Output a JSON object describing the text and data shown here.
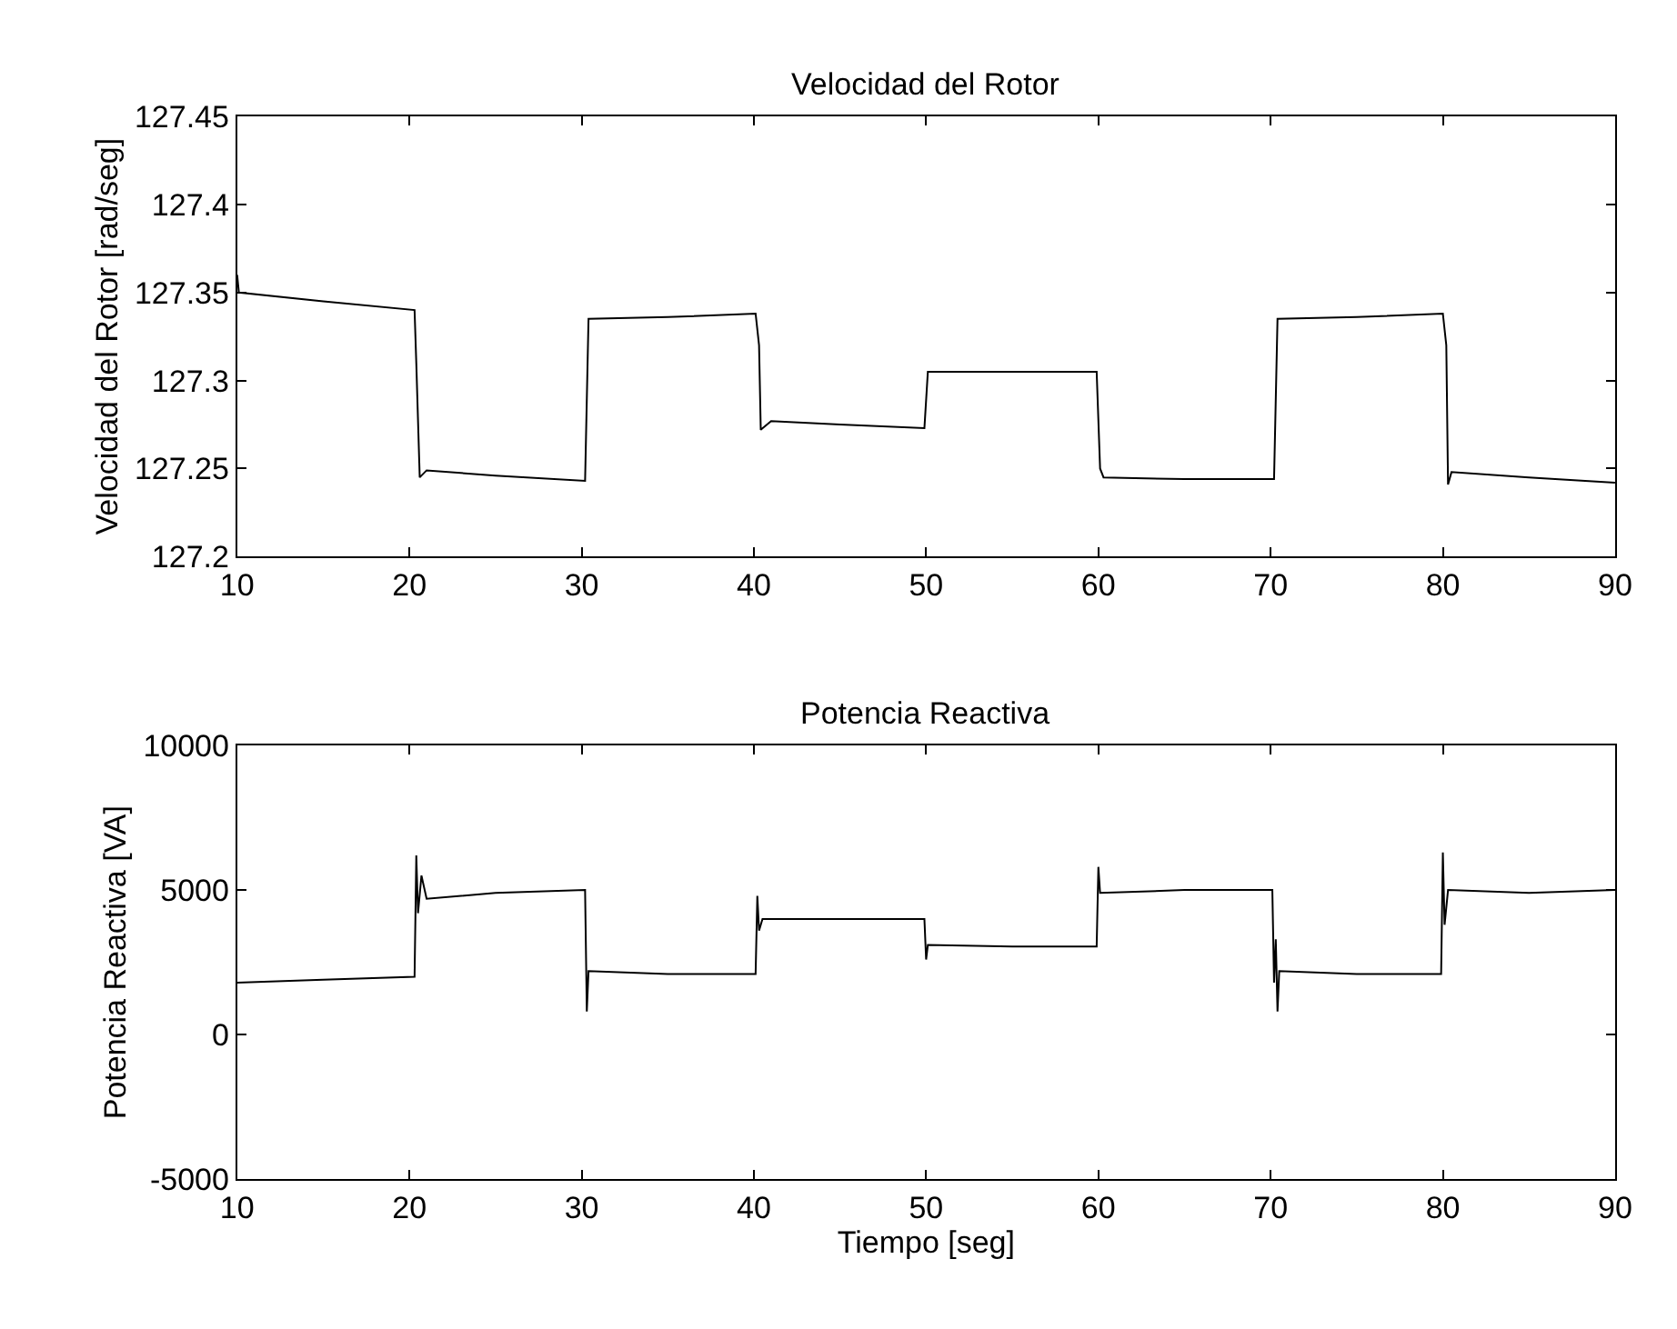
{
  "chart_data": [
    {
      "type": "line",
      "title": "Velocidad del Rotor",
      "ylabel": "Velocidad del Rotor [rad/seg]",
      "xlim": [
        10,
        90
      ],
      "xticks": [
        10,
        20,
        30,
        40,
        50,
        60,
        70,
        80,
        90
      ],
      "ylim": [
        127.2,
        127.45
      ],
      "yticks": [
        127.2,
        127.25,
        127.3,
        127.35,
        127.4,
        127.45
      ],
      "x": [
        10,
        10.1,
        15,
        20.3,
        20.4,
        20.6,
        21,
        25,
        30.2,
        30.4,
        35,
        40.1,
        40.3,
        40.4,
        41,
        45,
        49.9,
        50.1,
        55,
        59.9,
        60.1,
        60.3,
        65,
        70.2,
        70.4,
        75,
        80.0,
        80.2,
        80.3,
        80.5,
        85,
        90
      ],
      "series": [
        {
          "color": "#000000",
          "values": [
            127.36,
            127.35,
            127.345,
            127.34,
            127.31,
            127.245,
            127.249,
            127.246,
            127.243,
            127.335,
            127.336,
            127.338,
            127.32,
            127.272,
            127.277,
            127.275,
            127.273,
            127.305,
            127.305,
            127.305,
            127.25,
            127.245,
            127.244,
            127.244,
            127.335,
            127.336,
            127.338,
            127.32,
            127.241,
            127.248,
            127.245,
            127.242
          ]
        }
      ]
    },
    {
      "type": "line",
      "title": "Potencia Reactiva",
      "xlabel": "Tiempo [seg]",
      "ylabel": "Potencia Reactiva [VA]",
      "xlim": [
        10,
        90
      ],
      "xticks": [
        10,
        20,
        30,
        40,
        50,
        60,
        70,
        80,
        90
      ],
      "ylim": [
        -5000,
        10000
      ],
      "yticks": [
        -5000,
        0,
        5000,
        10000
      ],
      "x": [
        10,
        15,
        20.3,
        20.4,
        20.5,
        20.7,
        21,
        25,
        30.2,
        30.3,
        30.4,
        35,
        40.1,
        40.2,
        40.3,
        40.5,
        45,
        49.9,
        50,
        50.1,
        55,
        59.9,
        60,
        60.1,
        65,
        70.1,
        70.2,
        70.3,
        70.4,
        70.5,
        75,
        79.9,
        80,
        80.1,
        80.3,
        85,
        90
      ],
      "series": [
        {
          "color": "#000000",
          "values": [
            1800,
            1900,
            2000,
            6200,
            4200,
            5500,
            4700,
            4900,
            5000,
            800,
            2200,
            2100,
            2100,
            4800,
            3600,
            4000,
            4000,
            4000,
            2600,
            3100,
            3050,
            3050,
            5800,
            4900,
            5000,
            5000,
            1800,
            3300,
            800,
            2200,
            2100,
            2100,
            6300,
            3800,
            5000,
            4900,
            5000
          ]
        }
      ]
    }
  ]
}
